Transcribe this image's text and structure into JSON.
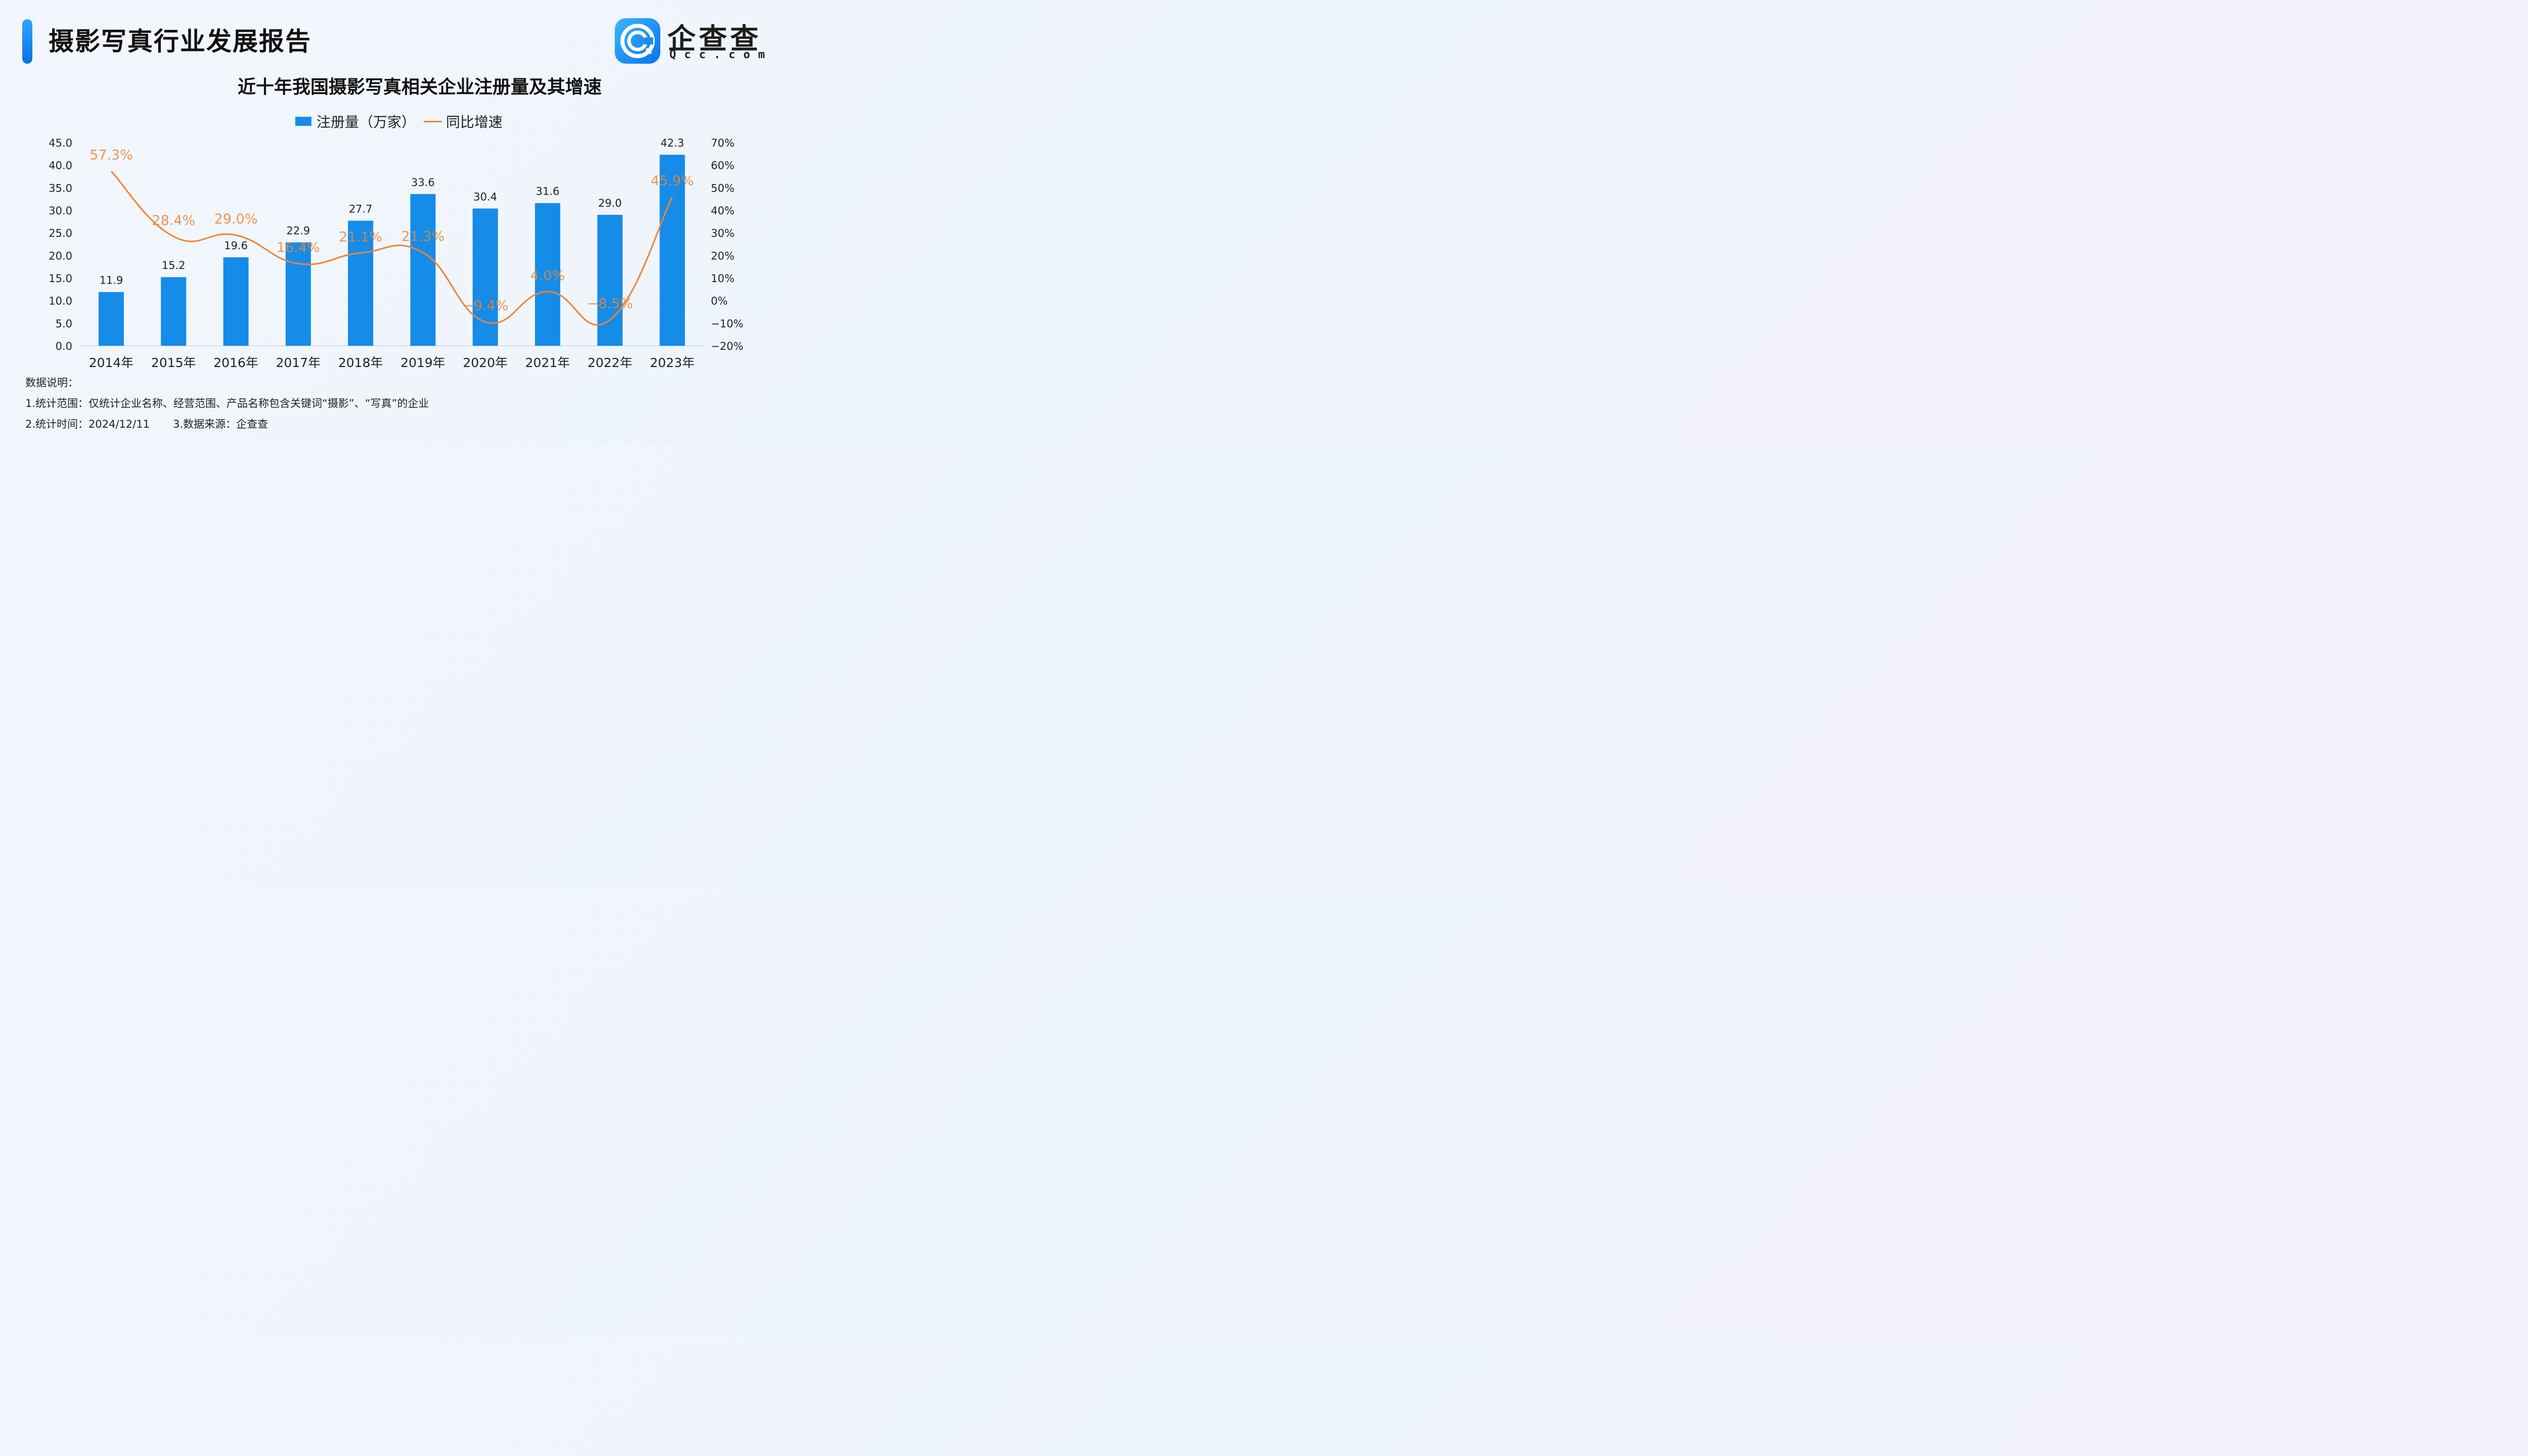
{
  "header": {
    "title": "摄影写真行业发展报告",
    "logo_cn": "企查查",
    "logo_en": "Qcc.com"
  },
  "chart_data": {
    "type": "bar",
    "title": "近十年我国摄影写真相关企业注册量及其增速",
    "categories": [
      "2014年",
      "2015年",
      "2016年",
      "2017年",
      "2018年",
      "2019年",
      "2020年",
      "2021年",
      "2022年",
      "2023年"
    ],
    "series": [
      {
        "name": "注册量（万家）",
        "type": "bar",
        "axis": "left",
        "color": "#158ce8",
        "values": [
          11.9,
          15.2,
          19.6,
          22.9,
          27.7,
          33.6,
          30.4,
          31.6,
          29.0,
          42.3
        ],
        "labels": [
          "11.9",
          "15.2",
          "19.6",
          "22.9",
          "27.7",
          "33.6",
          "30.4",
          "31.6",
          "29.0",
          "42.3"
        ]
      },
      {
        "name": "同比增速",
        "type": "line",
        "axis": "right",
        "smooth": true,
        "color": "#ee8434",
        "values": [
          57.3,
          28.4,
          29.0,
          16.4,
          21.1,
          21.3,
          -9.4,
          4.0,
          -8.5,
          45.9
        ],
        "labels": [
          "57.3%",
          "28.4%",
          "29.0%",
          "16.4%",
          "21.1%",
          "21.3%",
          "−9.4%",
          "4.0%",
          "−8.5%",
          "45.9%"
        ]
      }
    ],
    "y_left": {
      "min": 0,
      "max": 45,
      "ticks": [
        "0.0",
        "5.0",
        "10.0",
        "15.0",
        "20.0",
        "25.0",
        "30.0",
        "35.0",
        "40.0",
        "45.0"
      ]
    },
    "y_right": {
      "min": -20,
      "max": 70,
      "ticks": [
        "−20%",
        "−10%",
        "0%",
        "10%",
        "20%",
        "30%",
        "40%",
        "50%",
        "60%",
        "70%"
      ]
    },
    "grid": false,
    "legend_position": "top-center"
  },
  "notes": {
    "heading": "数据说明：",
    "scope": "1.统计范围：仅统计企业名称、经营范围、产品名称包含关键词“摄影”、“写真”的企业",
    "time": "2.统计时间：2024/12/11",
    "source": "3.数据来源：企查查"
  }
}
